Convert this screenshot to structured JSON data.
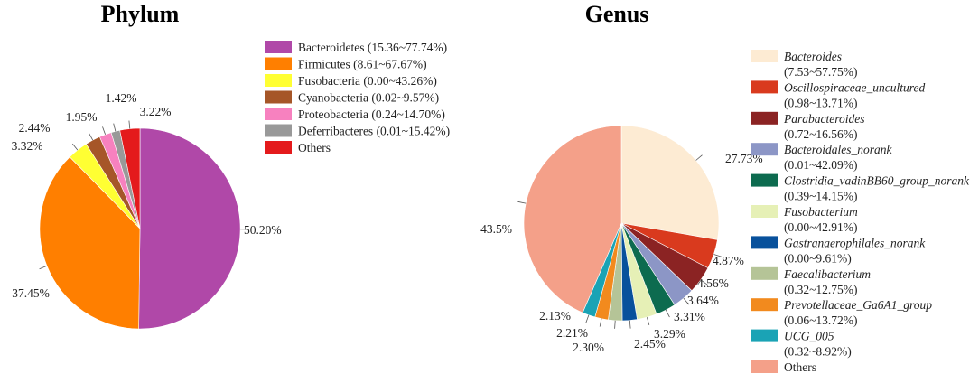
{
  "chart_data": [
    {
      "type": "pie",
      "title": "Phylum",
      "colors": {
        "Bacteroidetes": "#b048a8",
        "Firmicutes": "#ff7f00",
        "Fusobacteria": "#ffff33",
        "Cyanobacteria": "#a65628",
        "Proteobacteria": "#f781bf",
        "Deferribacteres": "#999999",
        "Others": "#e41a1c"
      },
      "slices": [
        {
          "name": "Bacteroidetes",
          "value": 50.2,
          "label": "50.20%",
          "legend": "Bacteroidetes (15.36~77.74%)"
        },
        {
          "name": "Firmicutes",
          "value": 37.45,
          "label": "37.45%",
          "legend": "Firmicutes (8.61~67.67%)"
        },
        {
          "name": "Fusobacteria",
          "value": 3.32,
          "label": "3.32%",
          "legend": "Fusobacteria (0.00~43.26%)"
        },
        {
          "name": "Cyanobacteria",
          "value": 2.44,
          "label": "2.44%",
          "legend": "Cyanobacteria (0.02~9.57%)"
        },
        {
          "name": "Proteobacteria",
          "value": 1.95,
          "label": "1.95%",
          "legend": "Proteobacteria (0.24~14.70%)"
        },
        {
          "name": "Deferribacteres",
          "value": 1.42,
          "label": "1.42%",
          "legend": "Deferribacteres (0.01~15.42%)"
        },
        {
          "name": "Others",
          "value": 3.22,
          "label": "3.22%",
          "legend": "Others"
        }
      ]
    },
    {
      "type": "pie",
      "title": "Genus",
      "colors": {
        "Bacteroides": "#fdebd3",
        "Oscillospiraceae_uncultured": "#d93a1e",
        "Parabacteroides": "#8b2323",
        "Bacteroidales_norank": "#8c96c6",
        "Clostridia_vadinBB60_group_norank": "#0d6b4f",
        "Fusobacterium": "#e6f0b6",
        "Gastranaerophilales_norank": "#08519c",
        "Faecalibacterium": "#b5c497",
        "Prevotellaceae_Ga6A1_group": "#f28a1e",
        "UCG_005": "#1aa3b5",
        "Others": "#f4a089"
      },
      "slices": [
        {
          "name": "Bacteroides",
          "value": 27.73,
          "label": "27.73%",
          "range": "(7.53~57.75%)"
        },
        {
          "name": "Oscillospiraceae_uncultured",
          "value": 4.87,
          "label": "4.87%",
          "range": "(0.98~13.71%)"
        },
        {
          "name": "Parabacteroides",
          "value": 4.56,
          "label": "4.56%",
          "range": "(0.72~16.56%)"
        },
        {
          "name": "Bacteroidales_norank",
          "value": 3.64,
          "label": "3.64%",
          "range": "(0.01~42.09%)"
        },
        {
          "name": "Clostridia_vadinBB60_group_norank",
          "value": 3.31,
          "label": "3.31%",
          "range": "(0.39~14.15%)"
        },
        {
          "name": "Fusobacterium",
          "value": 3.29,
          "label": "3.29%",
          "range": "(0.00~42.91%)"
        },
        {
          "name": "Gastranaerophilales_norank",
          "value": 2.45,
          "label": "2.45%",
          "range": "(0.00~9.61%)"
        },
        {
          "name": "Faecalibacterium",
          "value": 2.3,
          "label": "2.30%",
          "range": "(0.32~12.75%)"
        },
        {
          "name": "Prevotellaceae_Ga6A1_group",
          "value": 2.21,
          "label": "2.21%",
          "range": "(0.06~13.72%)"
        },
        {
          "name": "UCG_005",
          "value": 2.13,
          "label": "2.13%",
          "range": "(0.32~8.92%)"
        },
        {
          "name": "Others",
          "value": 43.5,
          "label": "43.5%",
          "range": ""
        }
      ]
    }
  ]
}
